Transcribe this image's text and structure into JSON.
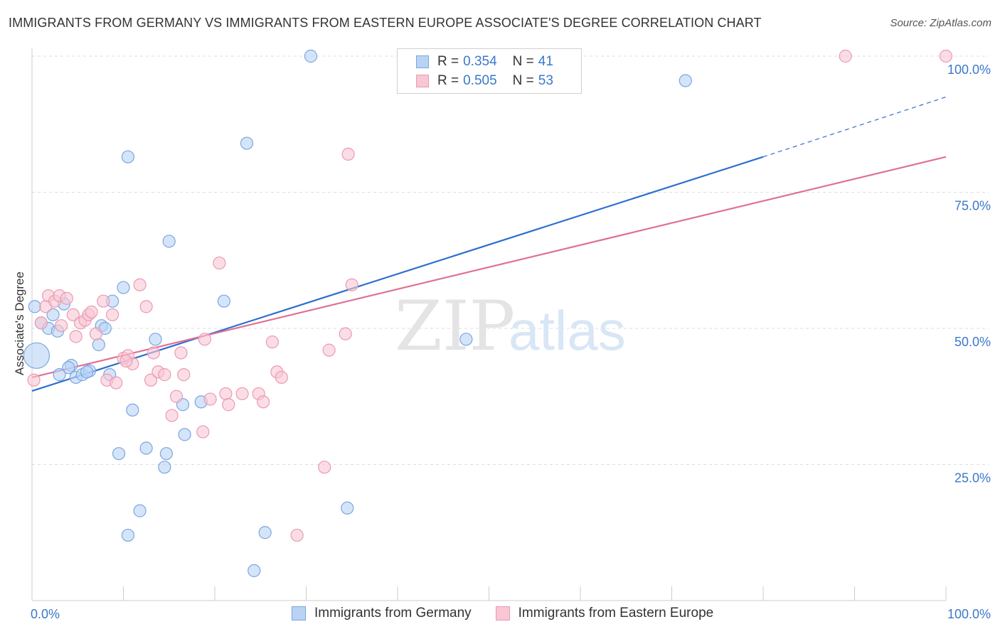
{
  "title": "IMMIGRANTS FROM GERMANY VS IMMIGRANTS FROM EASTERN EUROPE ASSOCIATE'S DEGREE CORRELATION CHART",
  "source": "Source: ZipAtlas.com",
  "watermark": {
    "zip": "ZIP",
    "atlas": "atlas"
  },
  "legend": {
    "rows": [
      {
        "r_label": "R =",
        "r_value": "0.354",
        "n_label": "N =",
        "n_value": "41"
      },
      {
        "r_label": "R =",
        "r_value": "0.505",
        "n_label": "N =",
        "n_value": "53"
      }
    ]
  },
  "colors": {
    "germany_fill": "#b9d3f5",
    "germany_stroke": "#7aa6e0",
    "germany_line": "#2e6fd0",
    "eastern_fill": "#f9c6d4",
    "eastern_stroke": "#eb9ab2",
    "eastern_line": "#e07097",
    "axis_text": "#3a78c9",
    "grid": "#dddddd"
  },
  "chart_data": {
    "type": "scatter",
    "title": "IMMIGRANTS FROM GERMANY VS IMMIGRANTS FROM EASTERN EUROPE ASSOCIATE'S DEGREE CORRELATION CHART",
    "xlabel": "",
    "ylabel": "Associate's Degree",
    "xlim": [
      0,
      100
    ],
    "ylim": [
      0,
      100
    ],
    "x_tick_labels": [
      "0.0%",
      "100.0%"
    ],
    "y_tick_labels": [
      "25.0%",
      "50.0%",
      "75.0%",
      "100.0%"
    ],
    "y_ticks": [
      25,
      50,
      75,
      100
    ],
    "grid": true,
    "legend_position": "top-center",
    "series": [
      {
        "name": "Immigrants from Germany",
        "points": [
          [
            0.5,
            45.0
          ],
          [
            0.3,
            54.0
          ],
          [
            1.0,
            51.0
          ],
          [
            2.3,
            52.5
          ],
          [
            1.8,
            50.0
          ],
          [
            2.8,
            49.5
          ],
          [
            3.5,
            54.5
          ],
          [
            4.3,
            43.2
          ],
          [
            4.0,
            42.8
          ],
          [
            4.8,
            41.0
          ],
          [
            5.5,
            41.5
          ],
          [
            6.3,
            42.2
          ],
          [
            7.3,
            47.0
          ],
          [
            7.6,
            50.5
          ],
          [
            8.0,
            50.0
          ],
          [
            8.5,
            41.5
          ],
          [
            8.8,
            55.0
          ],
          [
            10.0,
            57.5
          ],
          [
            10.5,
            81.5
          ],
          [
            11.0,
            35.0
          ],
          [
            9.5,
            27.0
          ],
          [
            11.8,
            16.5
          ],
          [
            12.5,
            28.0
          ],
          [
            14.5,
            24.5
          ],
          [
            15.0,
            66.0
          ],
          [
            13.5,
            48.0
          ],
          [
            14.7,
            27.0
          ],
          [
            16.5,
            36.0
          ],
          [
            16.7,
            30.5
          ],
          [
            18.5,
            36.5
          ],
          [
            21.0,
            55.0
          ],
          [
            23.5,
            84.0
          ],
          [
            24.3,
            5.5
          ],
          [
            25.5,
            12.5
          ],
          [
            10.5,
            12.0
          ],
          [
            30.5,
            100.0
          ],
          [
            34.5,
            17.0
          ],
          [
            47.5,
            48.0
          ],
          [
            71.5,
            95.5
          ],
          [
            6.0,
            42.0
          ],
          [
            3.0,
            41.5
          ]
        ],
        "trend": {
          "x": [
            0,
            80
          ],
          "y": [
            38.5,
            81.5
          ],
          "dashed_to": [
            100,
            92.5
          ]
        }
      },
      {
        "name": "Immigrants from Eastern Europe",
        "points": [
          [
            0.2,
            40.5
          ],
          [
            1.0,
            51.0
          ],
          [
            1.5,
            54.0
          ],
          [
            1.8,
            56.0
          ],
          [
            2.5,
            55.0
          ],
          [
            3.0,
            56.0
          ],
          [
            3.8,
            55.5
          ],
          [
            3.2,
            50.5
          ],
          [
            4.5,
            52.5
          ],
          [
            4.8,
            48.5
          ],
          [
            5.3,
            51.0
          ],
          [
            5.8,
            51.5
          ],
          [
            6.2,
            52.5
          ],
          [
            6.5,
            53.0
          ],
          [
            7.0,
            49.0
          ],
          [
            7.8,
            55.0
          ],
          [
            8.2,
            40.5
          ],
          [
            8.8,
            52.5
          ],
          [
            9.2,
            40.0
          ],
          [
            10.0,
            44.5
          ],
          [
            10.5,
            45.0
          ],
          [
            11.0,
            43.5
          ],
          [
            11.8,
            58.0
          ],
          [
            12.5,
            54.0
          ],
          [
            13.0,
            40.5
          ],
          [
            13.3,
            45.5
          ],
          [
            13.8,
            42.0
          ],
          [
            14.5,
            41.5
          ],
          [
            15.3,
            34.0
          ],
          [
            15.8,
            37.5
          ],
          [
            16.3,
            45.5
          ],
          [
            16.6,
            41.5
          ],
          [
            18.7,
            31.0
          ],
          [
            18.9,
            48.0
          ],
          [
            19.5,
            37.0
          ],
          [
            20.5,
            62.0
          ],
          [
            21.2,
            38.0
          ],
          [
            21.5,
            36.0
          ],
          [
            23.0,
            38.0
          ],
          [
            24.8,
            38.0
          ],
          [
            25.3,
            36.5
          ],
          [
            26.3,
            47.5
          ],
          [
            26.8,
            42.0
          ],
          [
            27.3,
            41.0
          ],
          [
            29.0,
            12.0
          ],
          [
            32.0,
            24.5
          ],
          [
            32.5,
            46.0
          ],
          [
            34.3,
            49.0
          ],
          [
            34.6,
            82.0
          ],
          [
            35.0,
            58.0
          ],
          [
            89.0,
            100.0
          ],
          [
            100.0,
            100.0
          ],
          [
            10.3,
            44.0
          ]
        ],
        "trend": {
          "x": [
            0,
            100
          ],
          "y": [
            41.0,
            81.5
          ]
        }
      }
    ]
  },
  "bottom_legend": [
    "Immigrants from Germany",
    "Immigrants from Eastern Europe"
  ]
}
